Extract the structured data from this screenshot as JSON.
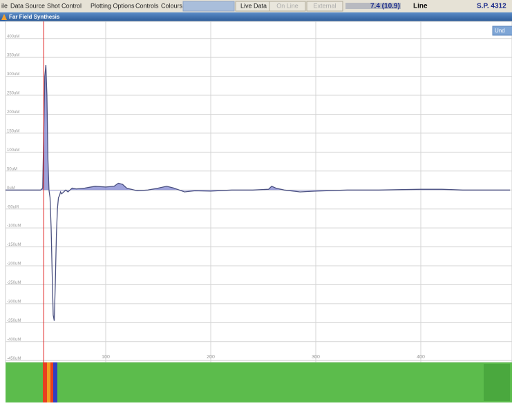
{
  "menu": [
    "ile",
    "Data Source",
    "Shot Control",
    "Plotting Options",
    "Controls",
    "Colours"
  ],
  "toolbar": {
    "buttons": [
      "Live Data",
      "On Line",
      "External"
    ],
    "reading": "7.4 (10.9)",
    "line_label": "Line",
    "shot_point": "S.P. 4312"
  },
  "window": {
    "title": "Far Field Synthesis",
    "button": "Und"
  },
  "chart_data": {
    "type": "line",
    "x": [
      0,
      38,
      40,
      41,
      42,
      43,
      44,
      45,
      46,
      47,
      48,
      49,
      50,
      51,
      52,
      53,
      54,
      55,
      56,
      57,
      58,
      60,
      62,
      64,
      66,
      68,
      72,
      80,
      90,
      100,
      108,
      112,
      116,
      120,
      130,
      140,
      150,
      158,
      165,
      175,
      185,
      200,
      220,
      240,
      255,
      258,
      262,
      270,
      285,
      300,
      330,
      360,
      400,
      420,
      440,
      485
    ],
    "values": [
      0,
      0,
      5,
      150,
      300,
      330,
      250,
      80,
      0,
      -20,
      -100,
      -220,
      -330,
      -345,
      -250,
      -120,
      -50,
      -20,
      -15,
      -5,
      -10,
      -5,
      0,
      -5,
      0,
      5,
      3,
      5,
      10,
      8,
      10,
      18,
      15,
      5,
      -2,
      0,
      5,
      10,
      5,
      -5,
      -2,
      -3,
      0,
      0,
      2,
      10,
      5,
      0,
      -5,
      -3,
      0,
      0,
      2,
      2,
      0,
      0
    ],
    "color": "#4a5080",
    "cursor_x": 41,
    "xlim": [
      0,
      485
    ],
    "xticks": [
      100,
      200,
      300,
      400
    ],
    "ylim": [
      -455,
      445
    ],
    "yticks": [
      {
        "value": 400,
        "label": "400uM"
      },
      {
        "value": 350,
        "label": "350uM"
      },
      {
        "value": 300,
        "label": "300uM"
      },
      {
        "value": 250,
        "label": "250uM"
      },
      {
        "value": 200,
        "label": "200uM"
      },
      {
        "value": 150,
        "label": "150uM"
      },
      {
        "value": 100,
        "label": "100uM"
      },
      {
        "value": 50,
        "label": "50uM"
      },
      {
        "value": 0,
        "label": "0uM"
      },
      {
        "value": -50,
        "label": "-50uM"
      },
      {
        "value": -100,
        "label": "-100uM"
      },
      {
        "value": -150,
        "label": "-150uM"
      },
      {
        "value": -200,
        "label": "-200uM"
      },
      {
        "value": -250,
        "label": "-250uM"
      },
      {
        "value": -300,
        "label": "-300uM"
      },
      {
        "value": -350,
        "label": "-350uM"
      },
      {
        "value": -400,
        "label": "-400uM"
      },
      {
        "value": -450,
        "label": "-450uM"
      }
    ],
    "grid": true
  }
}
